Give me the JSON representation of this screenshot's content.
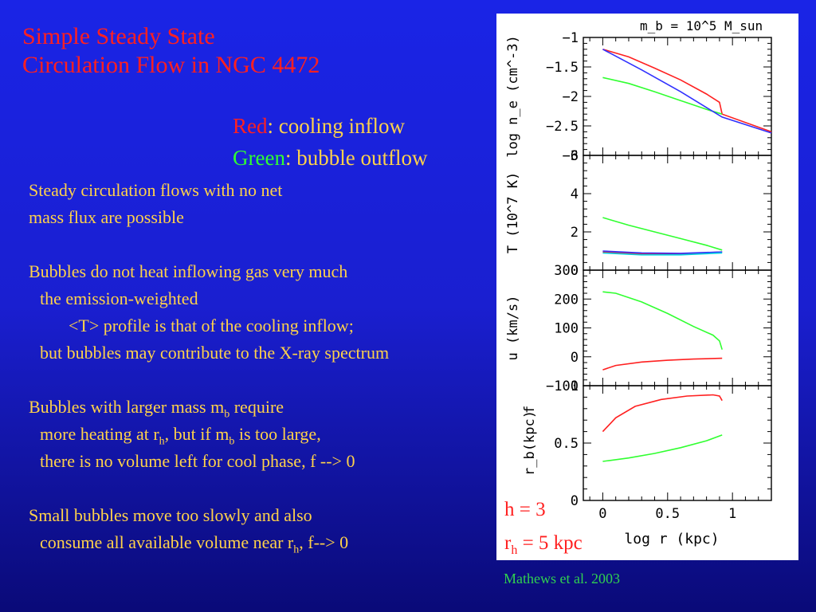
{
  "title": {
    "line1": "Simple Steady State",
    "line2": "Circulation Flow in NGC 4472"
  },
  "legend": {
    "red_word": "Red",
    "red_text": ": cooling inflow",
    "green_word": "Green",
    "green_text": ": bubble outflow"
  },
  "body": {
    "p1": {
      "l1": "Steady circulation flows with no net",
      "l2": "mass flux are possible"
    },
    "p2": {
      "l1": "Bubbles do not heat inflowing gas very much",
      "l2": "the emission-weighted",
      "l3": "<T> profile is that of the cooling inflow;",
      "l4": "but bubbles may contribute to the X-ray spectrum"
    },
    "p3": {
      "l1a": "Bubbles with larger mass m",
      "l1_sub": "b",
      "l1b": " require",
      "l2a": "more heating at r",
      "l2_sub1": "h",
      "l2b": ", but if m",
      "l2_sub2": "b",
      "l2c": " is too large,",
      "l3": "there is no volume left for cool phase, f --> 0"
    },
    "p4": {
      "l1": "Small bubbles move too slowly and also",
      "l2a": "consume all available volume near r",
      "l2_sub": "h",
      "l2b": ", f--> 0"
    }
  },
  "params": {
    "h": "h = 3",
    "rh_a": "r",
    "rh_sub": "h",
    "rh_b": " = 5 kpc"
  },
  "credit": "Mathews et al. 2003",
  "colors": {
    "red": "#ff2020",
    "green": "#30ff30",
    "blue": "#3030ff",
    "cyan": "#00d0e0",
    "text_yellow": "#ffd24a"
  },
  "chart_data": {
    "type": "line",
    "header_label": "m_b = 10^5 M_sun",
    "xlabel": "log r (kpc)",
    "xlim": [
      -0.15,
      1.3
    ],
    "x_ticks": [
      "0",
      "0.5",
      "1"
    ],
    "panels": [
      {
        "id": "ne",
        "ylabel": "log n_e (cm^-3)",
        "ylim": [
          -3,
          -1
        ],
        "y_ticks": [
          "-1",
          "-1.5",
          "-2",
          "-2.5",
          "-3"
        ],
        "series": [
          {
            "name": "red",
            "color": "#ff2020",
            "x": [
              0,
              0.2,
              0.4,
              0.6,
              0.8,
              0.9,
              0.92,
              1.3
            ],
            "y": [
              -1.2,
              -1.33,
              -1.52,
              -1.72,
              -1.96,
              -2.1,
              -2.3,
              -2.6
            ]
          },
          {
            "name": "green",
            "color": "#30ff30",
            "x": [
              0,
              0.2,
              0.4,
              0.6,
              0.8,
              0.92
            ],
            "y": [
              -1.68,
              -1.78,
              -1.92,
              -2.07,
              -2.22,
              -2.3
            ]
          },
          {
            "name": "blue",
            "color": "#3030ff",
            "x": [
              0,
              0.3,
              0.6,
              0.92,
              1.3
            ],
            "y": [
              -1.2,
              -1.55,
              -1.92,
              -2.35,
              -2.62
            ]
          }
        ]
      },
      {
        "id": "T",
        "ylabel": "T (10^7 K)",
        "ylim": [
          0,
          6
        ],
        "y_ticks": [
          "6",
          "4",
          "2",
          "0"
        ],
        "series": [
          {
            "name": "green",
            "color": "#30ff30",
            "x": [
              0,
              0.2,
              0.4,
              0.6,
              0.8,
              0.92
            ],
            "y": [
              2.75,
              2.35,
              2.0,
              1.65,
              1.3,
              1.05
            ]
          },
          {
            "name": "red",
            "color": "#ff2020",
            "x": [
              0,
              0.3,
              0.6,
              0.92
            ],
            "y": [
              0.95,
              0.85,
              0.85,
              0.95
            ]
          },
          {
            "name": "blue",
            "color": "#3030ff",
            "x": [
              0,
              0.3,
              0.6,
              0.92
            ],
            "y": [
              1.0,
              0.9,
              0.88,
              0.95
            ]
          },
          {
            "name": "cyan",
            "color": "#00d0e0",
            "x": [
              0,
              0.3,
              0.6,
              0.92
            ],
            "y": [
              0.9,
              0.8,
              0.8,
              0.9
            ]
          }
        ]
      },
      {
        "id": "u",
        "ylabel": "u (km/s)",
        "ylim": [
          -100,
          300
        ],
        "y_ticks": [
          "300",
          "200",
          "100",
          "0",
          "-100"
        ],
        "series": [
          {
            "name": "green",
            "color": "#30ff30",
            "x": [
              0,
              0.1,
              0.3,
              0.5,
              0.7,
              0.85,
              0.9,
              0.92
            ],
            "y": [
              225,
              220,
              190,
              150,
              105,
              75,
              55,
              25
            ]
          },
          {
            "name": "red",
            "color": "#ff2020",
            "x": [
              0,
              0.1,
              0.3,
              0.5,
              0.7,
              0.92
            ],
            "y": [
              -45,
              -30,
              -18,
              -12,
              -8,
              -5
            ]
          }
        ]
      },
      {
        "id": "f",
        "ylabel": "r_b(kpc)",
        "ylabel2": "f",
        "ylim": [
          0,
          1
        ],
        "y_ticks": [
          "1",
          "0.5",
          "0"
        ],
        "series": [
          {
            "name": "red",
            "color": "#ff2020",
            "x": [
              0,
              0.1,
              0.25,
              0.45,
              0.65,
              0.85,
              0.9,
              0.92
            ],
            "y": [
              0.6,
              0.72,
              0.82,
              0.88,
              0.91,
              0.92,
              0.91,
              0.87
            ]
          },
          {
            "name": "green",
            "color": "#30ff30",
            "x": [
              0,
              0.2,
              0.4,
              0.6,
              0.8,
              0.92
            ],
            "y": [
              0.34,
              0.37,
              0.41,
              0.46,
              0.52,
              0.57
            ]
          }
        ]
      }
    ]
  }
}
